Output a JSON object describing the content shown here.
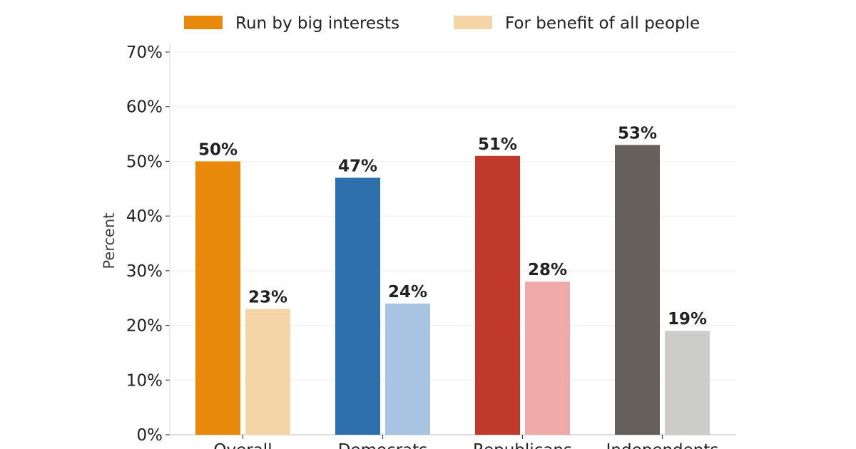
{
  "chart_data": {
    "type": "bar",
    "title": "",
    "xlabel": "",
    "ylabel": "Percent",
    "ylim": [
      0,
      70
    ],
    "yticks": [
      "0%",
      "10%",
      "20%",
      "30%",
      "40%",
      "50%",
      "60%",
      "70%"
    ],
    "grid": "horizontal",
    "legend_position": "top",
    "categories": [
      "Overall",
      "Democrats",
      "Republicans",
      "Independents"
    ],
    "series": [
      {
        "name": "Run by big interests",
        "values": [
          50,
          47,
          51,
          53
        ],
        "colors": [
          "#E8890C",
          "#2E6FAD",
          "#C0392B",
          "#65605C"
        ],
        "legend_color": "#E8890C"
      },
      {
        "name": "For benefit of all people",
        "values": [
          23,
          24,
          28,
          19
        ],
        "colors": [
          "#F5D5A8",
          "#A9C4E2",
          "#F0AAAA",
          "#CCCCCA"
        ],
        "legend_color": "#F5D5A8"
      }
    ],
    "value_suffix": "%"
  }
}
